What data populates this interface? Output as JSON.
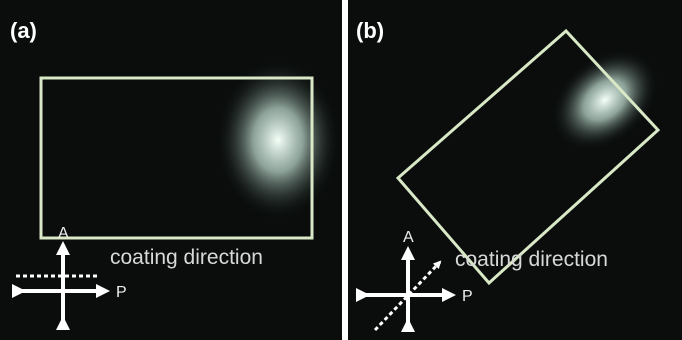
{
  "panels": [
    {
      "label": "(a)",
      "analyzer": "A",
      "polarizer": "P",
      "annotation": "coating direction"
    },
    {
      "label": "(b)",
      "analyzer": "A",
      "polarizer": "P",
      "annotation": "coating direction"
    }
  ]
}
